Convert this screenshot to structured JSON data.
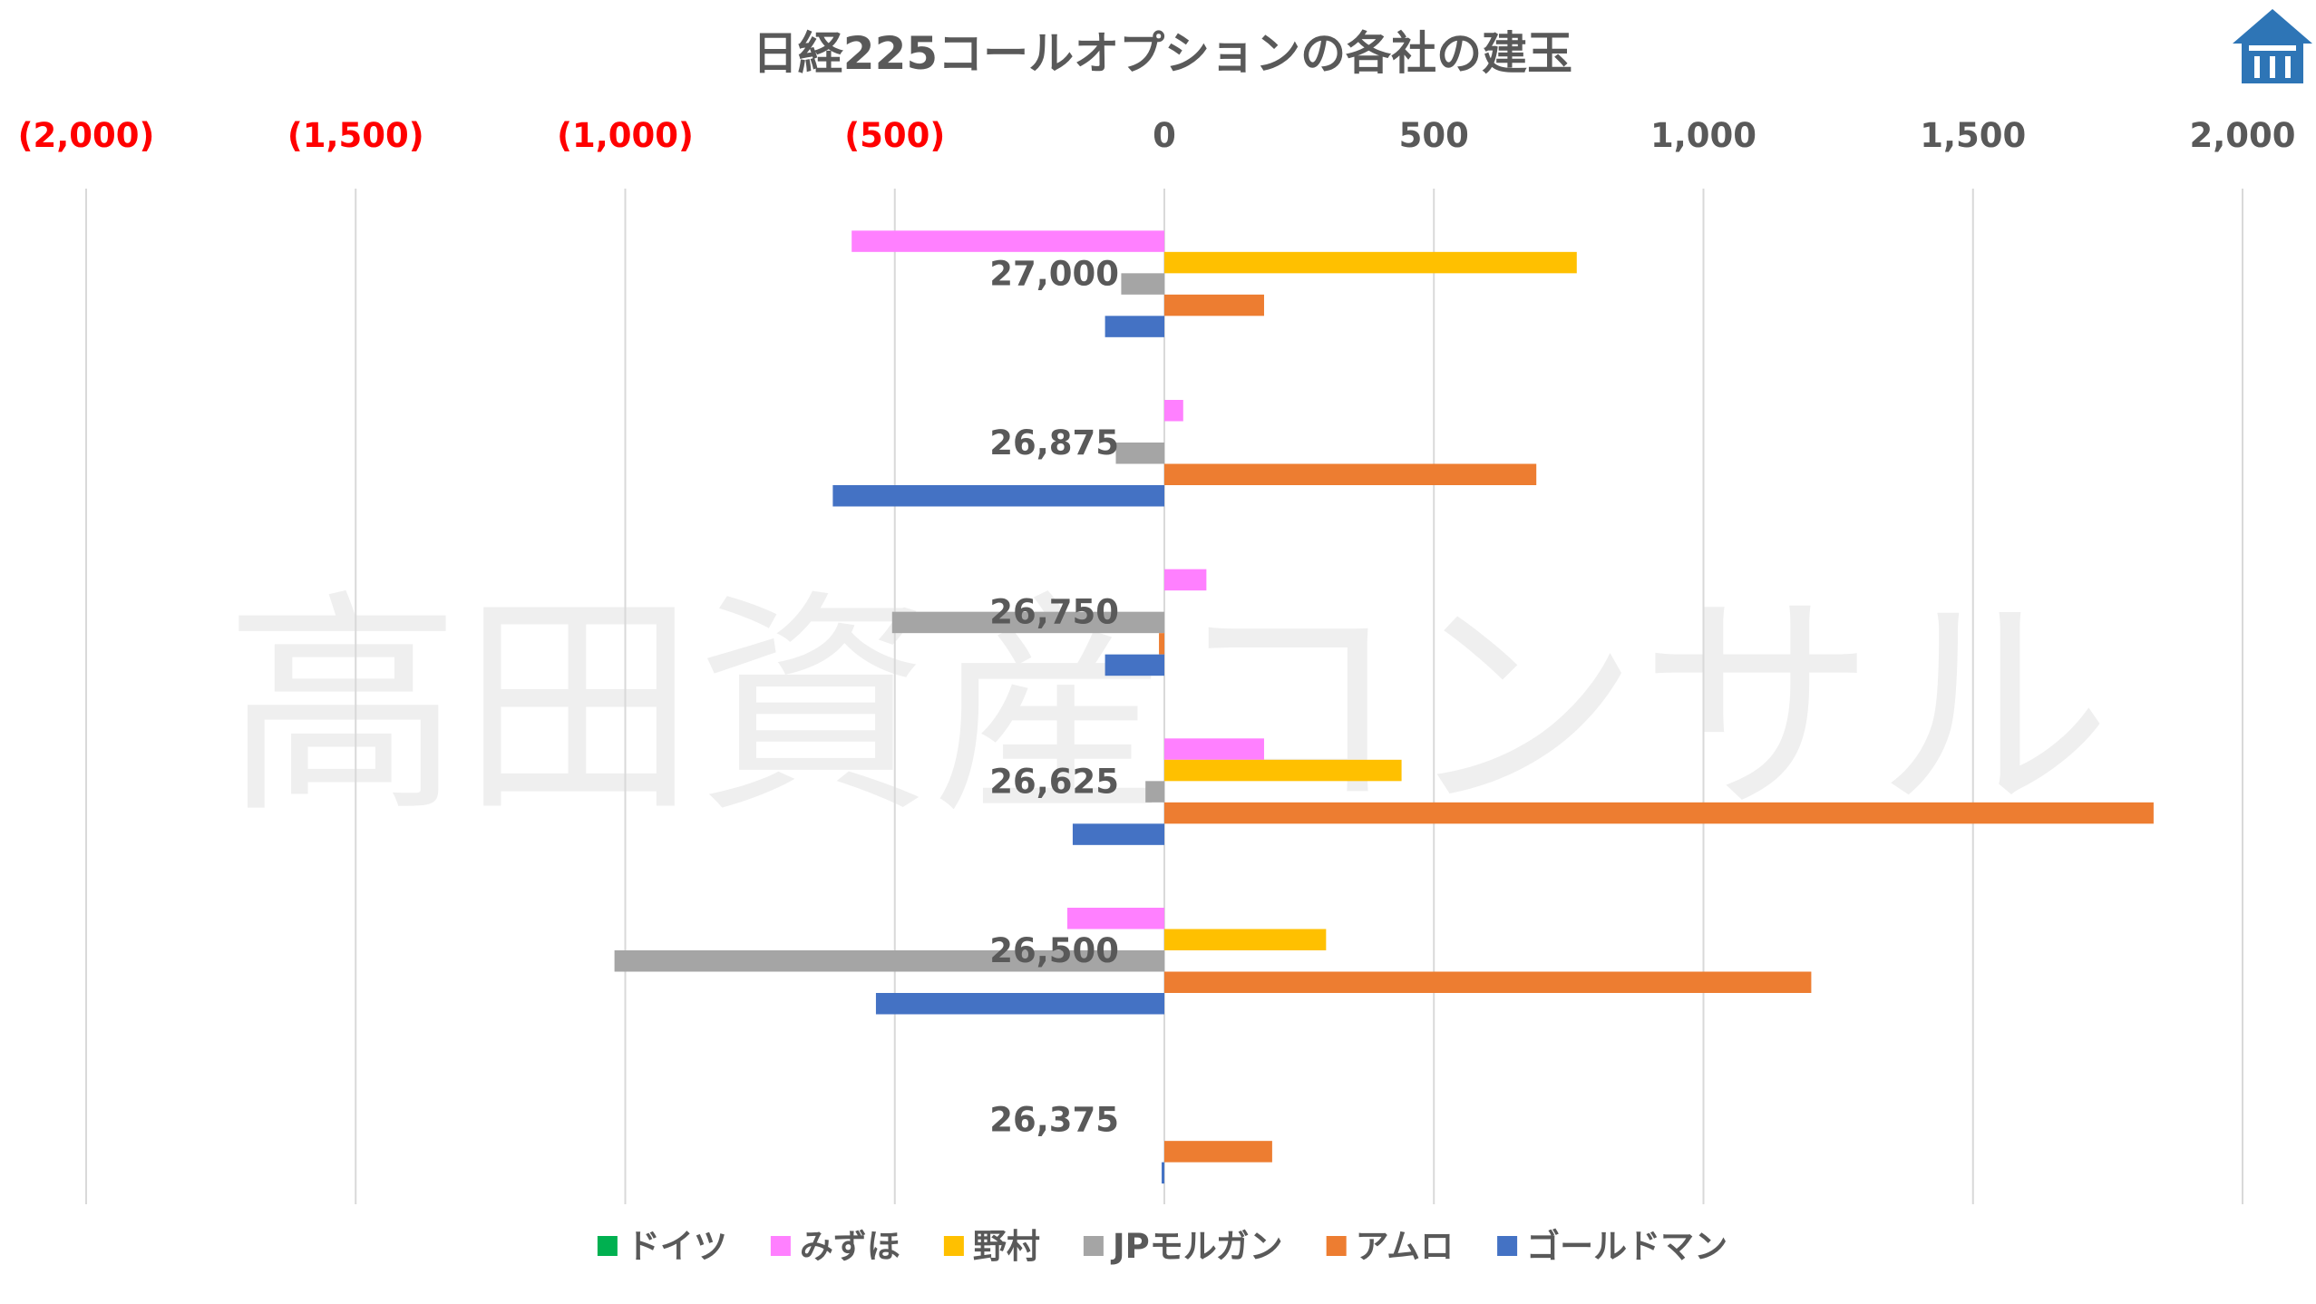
{
  "watermark": "高田資産コンサル",
  "chart_data": {
    "type": "bar",
    "orientation": "horizontal",
    "title": "日経225コールオプションの各社の建玉",
    "xlim": [
      -2000,
      2000
    ],
    "x_ticks": [
      {
        "value": -2000,
        "label": "(2,000)"
      },
      {
        "value": -1500,
        "label": "(1,500)"
      },
      {
        "value": -1000,
        "label": "(1,000)"
      },
      {
        "value": -500,
        "label": "(500)"
      },
      {
        "value": 0,
        "label": "0"
      },
      {
        "value": 500,
        "label": "500"
      },
      {
        "value": 1000,
        "label": "1,000"
      },
      {
        "value": 1500,
        "label": "1,500"
      },
      {
        "value": 2000,
        "label": "2,000"
      }
    ],
    "negative_tick_color": "#ff0000",
    "positive_tick_color": "#595959",
    "grid": "vertical",
    "legend_position": "bottom",
    "categories": [
      "27,000",
      "26,875",
      "26,750",
      "26,625",
      "26,500",
      "26,375"
    ],
    "series": [
      {
        "name": "ドイツ",
        "color": "#00b050",
        "values": [
          0,
          0,
          0,
          0,
          0,
          0
        ]
      },
      {
        "name": "みずほ",
        "color": "#ff80ff",
        "values": [
          -580,
          35,
          78,
          185,
          -180,
          0
        ]
      },
      {
        "name": "野村",
        "color": "#ffc000",
        "values": [
          765,
          0,
          0,
          440,
          300,
          0
        ]
      },
      {
        "name": "JPモルガン",
        "color": "#a5a5a5",
        "values": [
          -80,
          -90,
          -505,
          -35,
          -1020,
          0
        ]
      },
      {
        "name": "アムロ",
        "color": "#ed7d31",
        "values": [
          185,
          690,
          -10,
          1835,
          1200,
          200
        ]
      },
      {
        "name": "ゴールドマン",
        "color": "#4472c4",
        "values": [
          -110,
          -615,
          -110,
          -170,
          -535,
          -5
        ]
      }
    ]
  }
}
